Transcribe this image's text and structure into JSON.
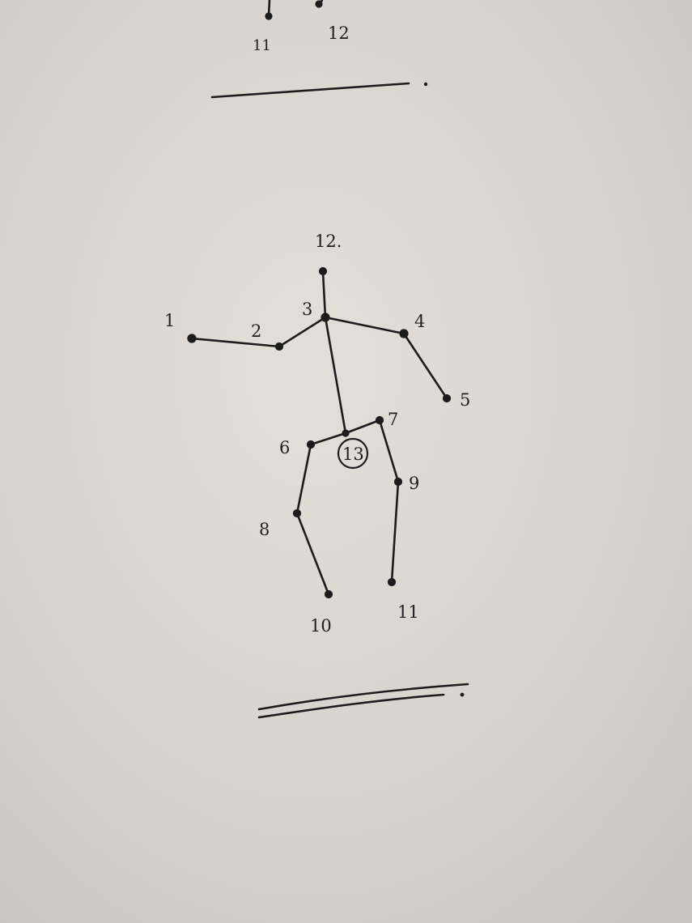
{
  "colors": {
    "paper": "#d8d6ce",
    "ink": "#1c1c1c"
  },
  "top_fragment_labels": [
    "11",
    "12"
  ],
  "figure": {
    "joint_labels": [
      "1",
      "2",
      "3",
      "4",
      "5",
      "6",
      "7",
      "8",
      "9",
      "10",
      "11",
      "12.",
      "13"
    ],
    "circled_label": "13"
  }
}
